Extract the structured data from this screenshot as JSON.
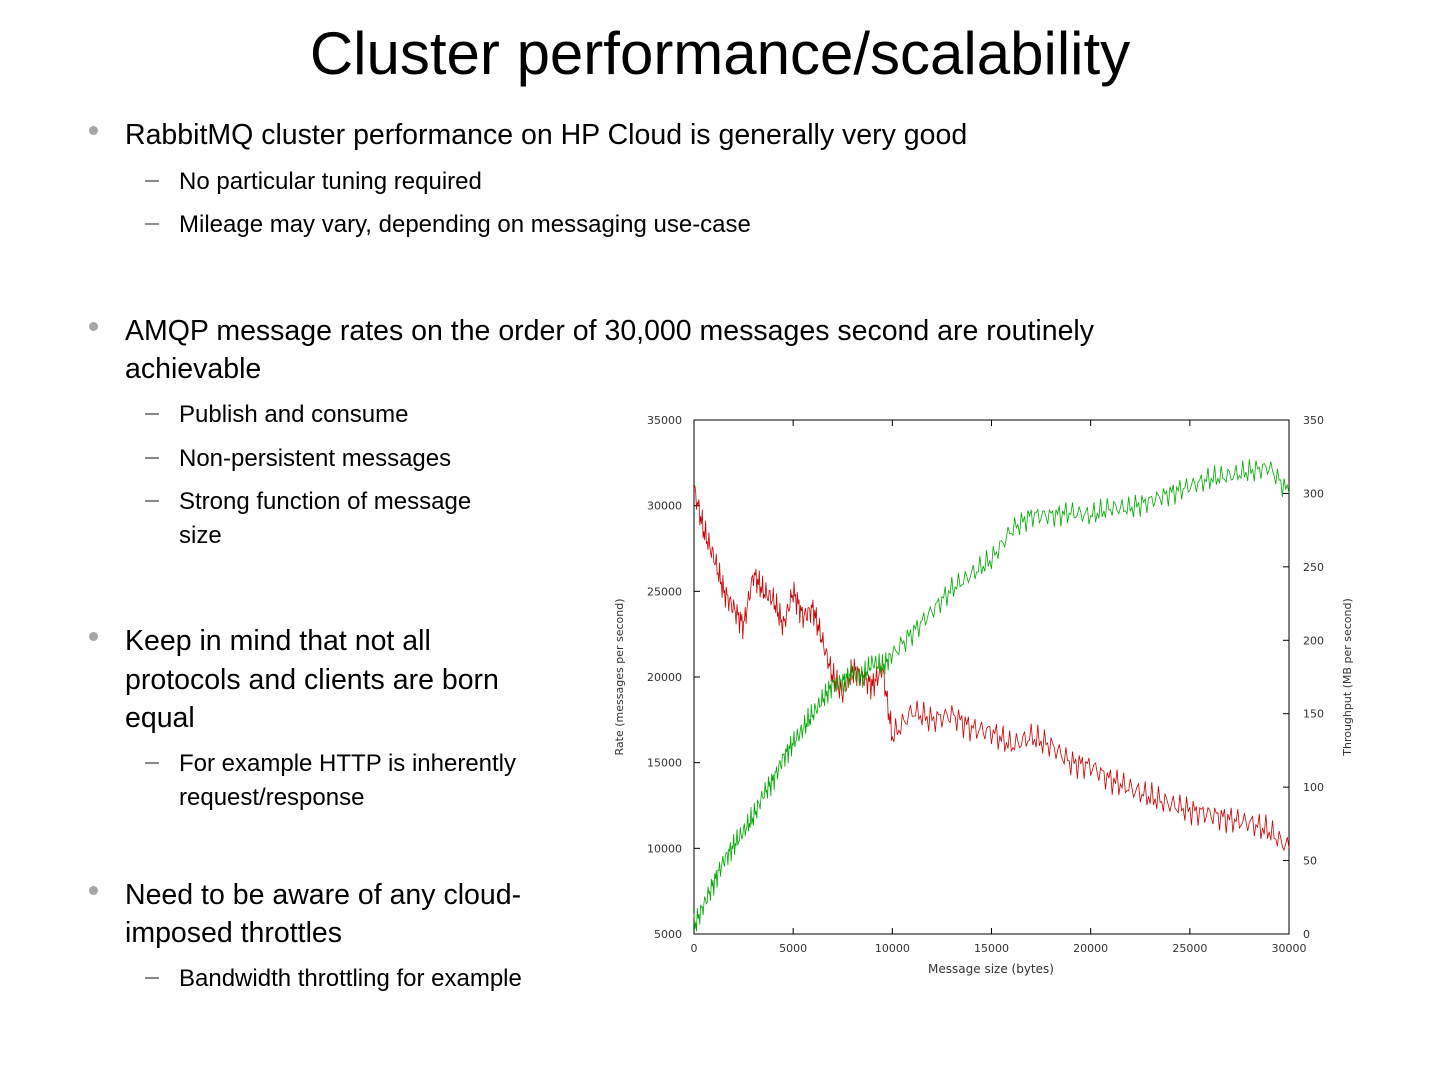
{
  "slide": {
    "title": "Cluster performance/scalability",
    "bullets": [
      {
        "text": "RabbitMQ cluster performance on HP Cloud is generally very good",
        "subs": [
          "No particular tuning required",
          "Mileage may vary, depending on messaging use-case"
        ]
      },
      {
        "text_line1": "AMQP message rates on the order of 30,000 messages second are routinely",
        "text_line2": "achievable",
        "subs": [
          "Publish and consume",
          "Non-persistent messages"
        ],
        "sub3_line1": "Strong function of message",
        "sub3_line2": "size"
      },
      {
        "line1": "Keep in mind that not all",
        "line2": "protocols and clients are born",
        "line3": "equal",
        "sub_line1": "For example HTTP is inherently",
        "sub_line2": "request/response"
      },
      {
        "line1": "Need to be aware of any cloud-",
        "line2": "imposed throttles",
        "sub": "Bandwidth throttling for example"
      }
    ]
  },
  "chart_data": {
    "type": "line",
    "xlabel": "Message size (bytes)",
    "ylabel": "Rate (messages per second)",
    "y2label": "Throughput (MB per second)",
    "xlim": [
      0,
      30000
    ],
    "ylim": [
      5000,
      35000
    ],
    "y2lim": [
      0,
      350
    ],
    "x_ticks": [
      "0",
      "5000",
      "10000",
      "15000",
      "20000",
      "25000",
      "30000"
    ],
    "y_ticks": [
      "5000",
      "10000",
      "15000",
      "20000",
      "25000",
      "30000",
      "35000"
    ],
    "y2_ticks": [
      "0",
      "50",
      "100",
      "150",
      "200",
      "250",
      "300",
      "350"
    ],
    "grid": false,
    "series": [
      {
        "axis": "left",
        "color": "#cc0000",
        "x": [
          0,
          500,
          1000,
          1500,
          2000,
          2500,
          3000,
          3500,
          4000,
          4500,
          5000,
          5500,
          6000,
          6500,
          7000,
          7500,
          8000,
          8500,
          9000,
          9500,
          10000,
          11000,
          12000,
          13000,
          14000,
          15000,
          16000,
          17000,
          18000,
          19000,
          20000,
          21000,
          22000,
          23000,
          24000,
          25000,
          26000,
          27000,
          28000,
          29000,
          30000
        ],
        "y": [
          31000,
          28500,
          27000,
          25000,
          24000,
          23000,
          26000,
          25000,
          24500,
          23000,
          25000,
          23500,
          24000,
          22000,
          20000,
          19000,
          20500,
          20000,
          19500,
          20500,
          16500,
          18000,
          17500,
          17800,
          17000,
          16800,
          16000,
          16500,
          16000,
          15000,
          14800,
          14000,
          13500,
          13000,
          12600,
          12200,
          12000,
          11700,
          11500,
          11000,
          10000
        ]
      },
      {
        "axis": "right",
        "color": "#00aa00",
        "x": [
          0,
          500,
          1000,
          1500,
          2000,
          2500,
          3000,
          3500,
          4000,
          4500,
          5000,
          5500,
          6000,
          6500,
          7000,
          7500,
          8000,
          8500,
          9000,
          9500,
          10000,
          11000,
          12000,
          13000,
          14000,
          15000,
          16000,
          17000,
          18000,
          19000,
          20000,
          21000,
          22000,
          23000,
          24000,
          25000,
          26000,
          27000,
          28000,
          29000,
          30000
        ],
        "y": [
          5,
          20,
          35,
          50,
          60,
          70,
          80,
          95,
          105,
          120,
          130,
          140,
          150,
          160,
          170,
          172,
          178,
          175,
          185,
          182,
          190,
          205,
          220,
          235,
          245,
          255,
          275,
          285,
          285,
          287,
          285,
          290,
          290,
          295,
          300,
          305,
          310,
          312,
          315,
          318,
          300
        ]
      }
    ]
  }
}
